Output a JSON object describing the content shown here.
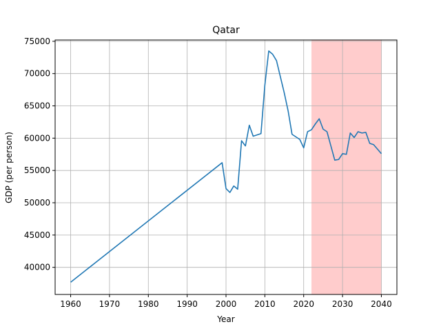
{
  "chart_data": {
    "type": "line",
    "title": "Qatar",
    "xlabel": "Year",
    "ylabel": "GDP (per person)",
    "xlim": [
      1956,
      2044
    ],
    "ylim": [
      35800,
      75200
    ],
    "xticks": [
      1960,
      1970,
      1980,
      1990,
      2000,
      2010,
      2020,
      2030,
      2040
    ],
    "yticks": [
      40000,
      45000,
      50000,
      55000,
      60000,
      65000,
      70000,
      75000
    ],
    "grid": true,
    "line_color": "#1f77b4",
    "grid_color": "#b0b0b0",
    "forecast_shading": {
      "x_start": 2022,
      "x_end": 2040,
      "color": "#ffcccc"
    },
    "series": [
      {
        "x": [
          1960,
          1999,
          2000,
          2001,
          2002,
          2003,
          2004,
          2005,
          2006,
          2007,
          2008,
          2009,
          2010,
          2011,
          2012,
          2013,
          2014,
          2015,
          2016,
          2017,
          2018,
          2019,
          2020,
          2021,
          2022,
          2023,
          2024,
          2025,
          2026,
          2027,
          2028,
          2029,
          2030,
          2031,
          2032,
          2033,
          2034,
          2035,
          2036,
          2037,
          2038,
          2039,
          2040
        ],
        "values": [
          37700,
          56200,
          52200,
          51600,
          52600,
          52100,
          59600,
          58800,
          62000,
          60300,
          60500,
          60700,
          68200,
          73500,
          73000,
          72000,
          69500,
          67000,
          64200,
          60600,
          60200,
          59800,
          58500,
          61000,
          61300,
          62200,
          63000,
          61400,
          61000,
          58800,
          56600,
          56700,
          57600,
          57500,
          60800,
          60100,
          61000,
          60800,
          60900,
          59200,
          59000,
          58300,
          57600
        ]
      }
    ]
  }
}
